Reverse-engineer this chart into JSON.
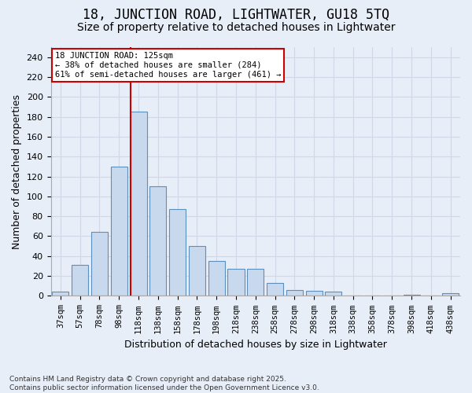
{
  "title1": "18, JUNCTION ROAD, LIGHTWATER, GU18 5TQ",
  "title2": "Size of property relative to detached houses in Lightwater",
  "xlabel": "Distribution of detached houses by size in Lightwater",
  "ylabel": "Number of detached properties",
  "categories": [
    "37sqm",
    "57sqm",
    "78sqm",
    "98sqm",
    "118sqm",
    "138sqm",
    "158sqm",
    "178sqm",
    "198sqm",
    "218sqm",
    "238sqm",
    "258sqm",
    "278sqm",
    "298sqm",
    "318sqm",
    "338sqm",
    "358sqm",
    "378sqm",
    "398sqm",
    "418sqm",
    "438sqm"
  ],
  "values": [
    4,
    31,
    64,
    130,
    185,
    110,
    87,
    50,
    35,
    27,
    27,
    13,
    6,
    5,
    4,
    0,
    0,
    0,
    1,
    0,
    3
  ],
  "bar_color": "#c9d9ed",
  "bar_edge_color": "#5b8fbe",
  "vline_index": 4,
  "vline_color": "#cc0000",
  "annotation_text": "18 JUNCTION ROAD: 125sqm\n← 38% of detached houses are smaller (284)\n61% of semi-detached houses are larger (461) →",
  "annotation_box_color": "#ffffff",
  "annotation_box_edge": "#cc0000",
  "ylim": [
    0,
    250
  ],
  "yticks": [
    0,
    20,
    40,
    60,
    80,
    100,
    120,
    140,
    160,
    180,
    200,
    220,
    240
  ],
  "grid_color": "#d0d8e8",
  "bg_color": "#e8eef8",
  "footer": "Contains HM Land Registry data © Crown copyright and database right 2025.\nContains public sector information licensed under the Open Government Licence v3.0.",
  "title1_fontsize": 12,
  "title2_fontsize": 10,
  "xlabel_fontsize": 9,
  "ylabel_fontsize": 9
}
